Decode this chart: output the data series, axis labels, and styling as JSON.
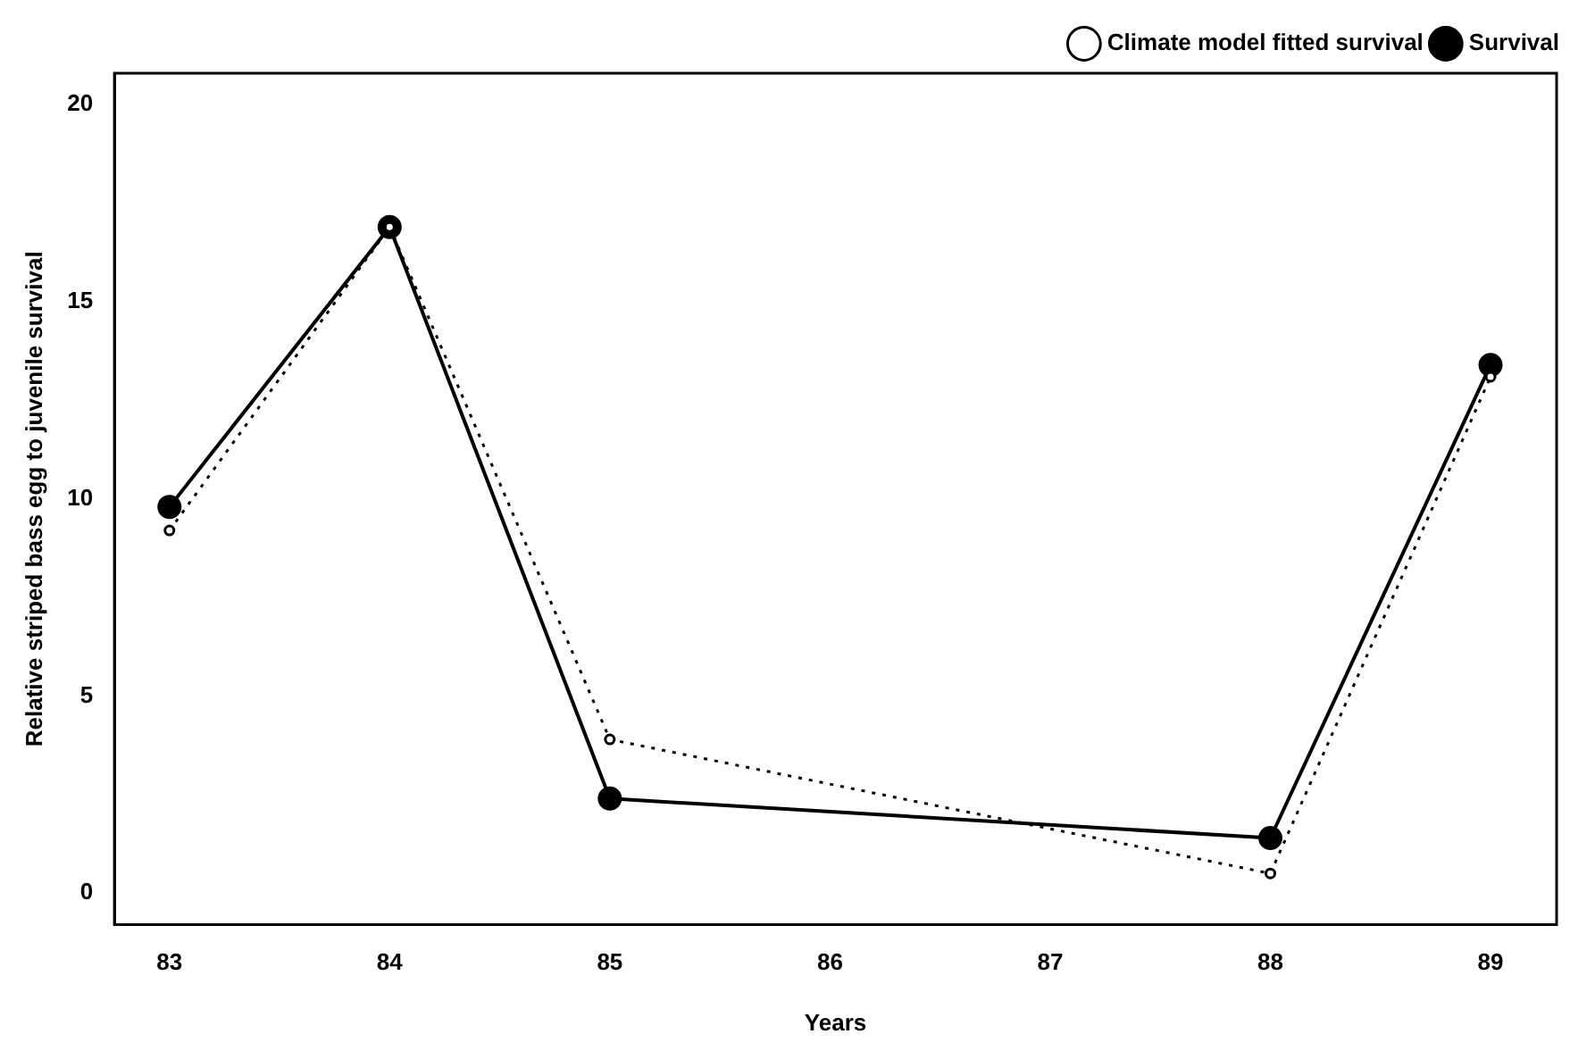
{
  "chart_data": {
    "type": "line",
    "xlabel": "Years",
    "ylabel": "Relative striped bass egg to juvenile survival",
    "x": [
      83,
      84,
      85,
      88,
      89
    ],
    "series": [
      {
        "name": "Climate model fitted survival",
        "color": "#000000",
        "values": [
          9.2,
          16.9,
          3.9,
          0.5,
          13.1
        ],
        "marker": "circle",
        "line_style": "dotted"
      },
      {
        "name": "Survival",
        "color": "#000000",
        "values": [
          9.8,
          16.9,
          2.4,
          1.4,
          13.4
        ],
        "marker": "circle",
        "line_style": "solid"
      }
    ],
    "xlim": [
      82.75,
      89.3
    ],
    "xticks": [
      83,
      84,
      85,
      86,
      87,
      88,
      89
    ],
    "ylim": [
      -0.8,
      20.8
    ],
    "yticks": [
      0,
      5,
      10,
      15,
      20
    ],
    "grid": false,
    "legend": "top right"
  }
}
